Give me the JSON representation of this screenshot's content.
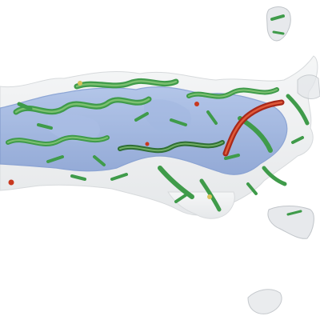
{
  "viewport": {
    "background": "#ffffff",
    "view": "3d-isosurface-render"
  },
  "colors": {
    "outer_envelope": "#d9dcdf",
    "outer_envelope_edge": "#b7bcc1",
    "inner_surface": "#6f93d6",
    "inner_surface_edge": "#4d74c2",
    "strand": "#3f9b4a",
    "strand_light": "#8cc97a",
    "strand_dark": "#2f6f34",
    "highlight_strand": "#c8381e",
    "warm_accent": "#d8c05a"
  },
  "objects": [
    {
      "name": "translucent-outer-envelope",
      "type": "density-surface"
    },
    {
      "name": "inner-blue-density",
      "type": "density-surface"
    },
    {
      "name": "green-backbone-strands",
      "type": "tubes"
    },
    {
      "name": "red-highlighted-strand",
      "type": "tube"
    },
    {
      "name": "floating-fragments",
      "type": "density-surface"
    }
  ]
}
